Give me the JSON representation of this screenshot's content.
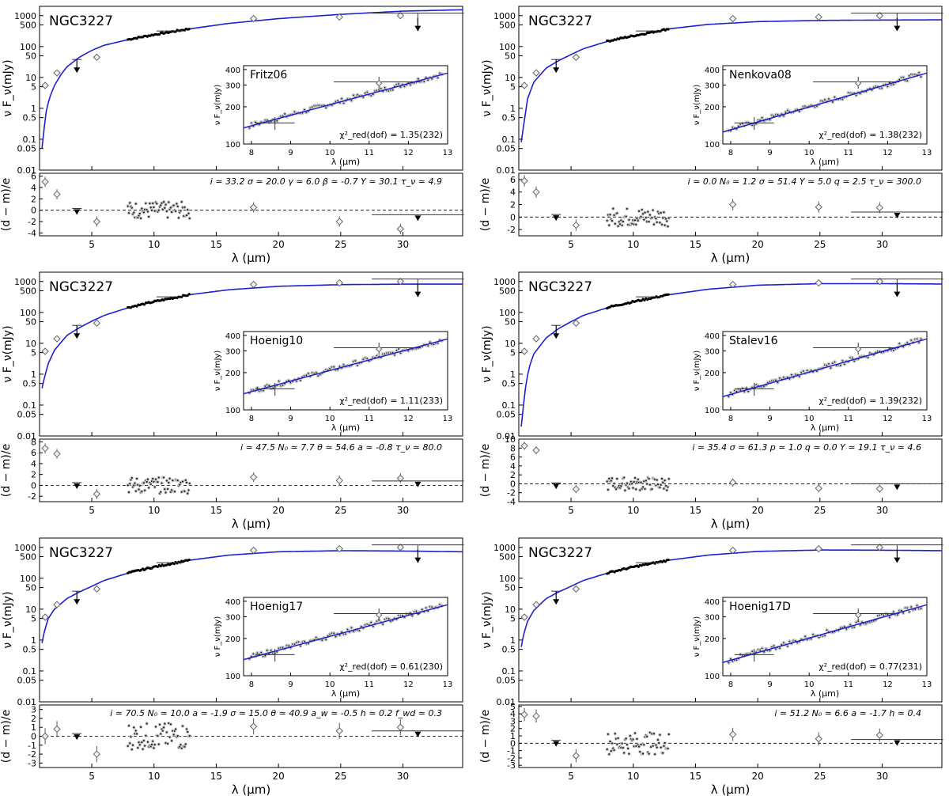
{
  "figure": {
    "xlabel_main": "λ (μm)",
    "ylabel_main": "ν F_ν(mJy)",
    "ylabel_resid": "(d − m)/e",
    "inset_xlabel": "λ (μm)",
    "inset_ylabel": "ν F_ν(mJy)",
    "colors": {
      "model": "#1f1fd0",
      "data": "#000000",
      "marker": "#888888",
      "ribbon": "#c8c8c8"
    }
  },
  "chart_data": [
    {
      "type": "line",
      "object": "NGC3227",
      "model": "Fritz06",
      "chi2_label": "χ²_red(dof) = 1.35(232)",
      "params": "i ≃ 33.2   σ ≃ 20.0   γ ≃ 6.0   β ≃ -0.7   Y ≃ 30.1   τ_ν ≃ 4.9",
      "main": {
        "xlim": [
          0.8,
          34.8
        ],
        "ylim": [
          0.01,
          2000
        ],
        "yscale": "log",
        "yticks": [
          "0.01",
          "0.05",
          "0.1",
          "0.5",
          "1",
          "5",
          "10",
          "50",
          "100",
          "500",
          "1000"
        ]
      },
      "model_curve": {
        "x": [
          1.0,
          1.3,
          1.6,
          2,
          2.5,
          3,
          4,
          5,
          6,
          8,
          10,
          13,
          16,
          20,
          25,
          30,
          34.8
        ],
        "y": [
          0.05,
          0.7,
          2.2,
          5.5,
          12,
          22,
          45,
          75,
          110,
          170,
          240,
          380,
          560,
          800,
          1100,
          1400,
          1550
        ]
      },
      "photometry": [
        {
          "x": 1.25,
          "y": 5.5,
          "xerr": 0,
          "yerr": [
            0,
            0
          ]
        },
        {
          "x": 2.2,
          "y": 14,
          "xerr": 0,
          "yerr": [
            0,
            0
          ]
        },
        {
          "x": 5.4,
          "y": 45,
          "xerr": 0,
          "yerr": [
            10,
            12
          ]
        },
        {
          "x": 18,
          "y": 800,
          "xerr": 0,
          "yerr": [
            0,
            0
          ]
        },
        {
          "x": 24.9,
          "y": 900,
          "xerr": 0,
          "yerr": [
            0,
            0
          ]
        },
        {
          "x": 29.8,
          "y": 1000,
          "xerr": 0,
          "yerr": [
            0,
            0
          ]
        }
      ],
      "upper_limits": [
        {
          "x": 3.8,
          "y": 38,
          "xerr": 0
        },
        {
          "x": 31.2,
          "y": 1200,
          "xerr": 3.7
        }
      ],
      "resid": {
        "ylim": [
          -4.5,
          6.5
        ],
        "yticks": [
          -4,
          -2,
          0,
          2,
          4,
          6
        ],
        "points": [
          {
            "x": 1.25,
            "y": 5.0
          },
          {
            "x": 2.2,
            "y": 2.8
          },
          {
            "x": 5.4,
            "y": -2.0
          },
          {
            "x": 18,
            "y": 0.5
          },
          {
            "x": 24.9,
            "y": -2.0
          },
          {
            "x": 29.8,
            "y": -3.3
          }
        ],
        "limits": [
          {
            "x": 3.8,
            "y": 0.3
          },
          {
            "x": 31.2,
            "y": -0.8
          }
        ]
      },
      "inset": {
        "xlim": [
          7.8,
          13
        ],
        "ylim": [
          100,
          430
        ],
        "yscale": "log",
        "model_start": 135,
        "model_end": 375
      }
    },
    {
      "type": "line",
      "object": "NGC3227",
      "model": "Nenkova08",
      "chi2_label": "χ²_red(dof) = 1.38(232)",
      "params": "i ≃ 0.0   N₀ ≃ 1.2   σ ≃ 51.4   Y ≃ 5.0   q ≃ 2.5   τ_ν ≃ 300.0",
      "main": {
        "xlim": [
          0.8,
          34.8
        ],
        "ylim": [
          0.01,
          2000
        ],
        "yscale": "log",
        "yticks": [
          "0.01",
          "0.05",
          "0.1",
          "0.5",
          "1",
          "5",
          "10",
          "50",
          "100",
          "500",
          "1000"
        ]
      },
      "model_curve": {
        "x": [
          1.0,
          1.2,
          1.5,
          2,
          3,
          4,
          5,
          6,
          8,
          10,
          13,
          16,
          20,
          25,
          30,
          34.8
        ],
        "y": [
          0.08,
          0.3,
          2,
          7,
          20,
          35,
          55,
          85,
          150,
          220,
          380,
          520,
          640,
          700,
          720,
          730
        ]
      },
      "photometry": [
        {
          "x": 1.25,
          "y": 5.5,
          "xerr": 0,
          "yerr": [
            0,
            0
          ]
        },
        {
          "x": 2.2,
          "y": 14,
          "xerr": 0,
          "yerr": [
            0,
            0
          ]
        },
        {
          "x": 5.4,
          "y": 45,
          "xerr": 0,
          "yerr": [
            10,
            12
          ]
        },
        {
          "x": 18,
          "y": 800,
          "xerr": 0,
          "yerr": [
            0,
            0
          ]
        },
        {
          "x": 24.9,
          "y": 900,
          "xerr": 0,
          "yerr": [
            0,
            0
          ]
        },
        {
          "x": 29.8,
          "y": 1000,
          "xerr": 0,
          "yerr": [
            0,
            0
          ]
        }
      ],
      "upper_limits": [
        {
          "x": 3.8,
          "y": 38,
          "xerr": 0
        },
        {
          "x": 31.2,
          "y": 1200,
          "xerr": 3.7
        }
      ],
      "resid": {
        "ylim": [
          -3,
          7
        ],
        "yticks": [
          -2,
          0,
          2,
          4,
          6
        ],
        "points": [
          {
            "x": 1.25,
            "y": 5.8
          },
          {
            "x": 2.2,
            "y": 4.0
          },
          {
            "x": 5.4,
            "y": -1.3
          },
          {
            "x": 18,
            "y": 2.0
          },
          {
            "x": 24.9,
            "y": 1.6
          },
          {
            "x": 29.8,
            "y": 1.5
          }
        ],
        "limits": [
          {
            "x": 3.8,
            "y": 0.4
          },
          {
            "x": 31.2,
            "y": 0.8
          }
        ]
      },
      "inset": {
        "xlim": [
          7.8,
          13
        ],
        "ylim": [
          100,
          430
        ],
        "yscale": "log",
        "model_start": 125,
        "model_end": 375
      }
    },
    {
      "type": "line",
      "object": "NGC3227",
      "model": "Hoenig10",
      "chi2_label": "χ²_red(dof) = 1.11(233)",
      "params": "i ≃ 47.5   N₀ ≃ 7.7   θ ≃ 54.6   a ≃ -0.8   τ_ν ≃ 80.0",
      "main": {
        "xlim": [
          0.8,
          34.8
        ],
        "ylim": [
          0.01,
          2000
        ],
        "yscale": "log",
        "yticks": [
          "0.01",
          "0.05",
          "0.1",
          "0.5",
          "1",
          "5",
          "10",
          "50",
          "100",
          "500",
          "1000"
        ]
      },
      "model_curve": {
        "x": [
          1.0,
          1.2,
          1.5,
          2,
          3,
          4,
          5,
          6,
          8,
          10,
          13,
          16,
          20,
          25,
          30,
          34.8
        ],
        "y": [
          0.35,
          0.8,
          2.2,
          6,
          18,
          32,
          52,
          80,
          145,
          220,
          380,
          540,
          700,
          790,
          820,
          820
        ]
      },
      "photometry": [
        {
          "x": 1.25,
          "y": 5.5,
          "xerr": 0,
          "yerr": [
            0,
            0
          ]
        },
        {
          "x": 2.2,
          "y": 14,
          "xerr": 0,
          "yerr": [
            0,
            0
          ]
        },
        {
          "x": 5.4,
          "y": 45,
          "xerr": 0,
          "yerr": [
            10,
            12
          ]
        },
        {
          "x": 18,
          "y": 800,
          "xerr": 0,
          "yerr": [
            0,
            0
          ]
        },
        {
          "x": 24.9,
          "y": 900,
          "xerr": 0,
          "yerr": [
            0,
            0
          ]
        },
        {
          "x": 29.8,
          "y": 1000,
          "xerr": 0,
          "yerr": [
            0,
            0
          ]
        }
      ],
      "upper_limits": [
        {
          "x": 3.8,
          "y": 38,
          "xerr": 0
        },
        {
          "x": 31.2,
          "y": 1200,
          "xerr": 3.7
        }
      ],
      "resid": {
        "ylim": [
          -3,
          8.5
        ],
        "yticks": [
          -2,
          0,
          2,
          4,
          6,
          8
        ],
        "points": [
          {
            "x": 1.25,
            "y": 6.8
          },
          {
            "x": 2.2,
            "y": 5.8
          },
          {
            "x": 5.4,
            "y": -1.6
          },
          {
            "x": 18,
            "y": 1.5
          },
          {
            "x": 24.9,
            "y": 0.9
          },
          {
            "x": 29.8,
            "y": 1.3
          }
        ],
        "limits": [
          {
            "x": 3.8,
            "y": 0.5
          },
          {
            "x": 31.2,
            "y": 0.8
          }
        ]
      },
      "inset": {
        "xlim": [
          7.8,
          13
        ],
        "ylim": [
          100,
          430
        ],
        "yscale": "log",
        "model_start": 135,
        "model_end": 375
      }
    },
    {
      "type": "line",
      "object": "NGC3227",
      "model": "Stalev16",
      "chi2_label": "χ²_red(dof) = 1.39(232)",
      "params": "i ≃ 35.4   σ ≃ 61.3   p ≃ 1.0   q ≃ 0.0   Y ≃ 19.1   τ_ν ≃ 4.6",
      "main": {
        "xlim": [
          0.8,
          34.8
        ],
        "ylim": [
          0.01,
          2000
        ],
        "yscale": "log",
        "yticks": [
          "0.01",
          "0.05",
          "0.1",
          "0.5",
          "1",
          "5",
          "10",
          "50",
          "100",
          "500",
          "1000"
        ]
      },
      "model_curve": {
        "x": [
          1.0,
          1.3,
          1.6,
          2,
          3,
          4,
          5,
          6,
          8,
          10,
          13,
          16,
          20,
          25,
          30,
          34.8
        ],
        "y": [
          0.02,
          0.3,
          1.5,
          4.5,
          15,
          30,
          50,
          80,
          145,
          220,
          380,
          560,
          760,
          850,
          850,
          830
        ]
      },
      "photometry": [
        {
          "x": 1.25,
          "y": 5.5,
          "xerr": 0,
          "yerr": [
            0,
            0
          ]
        },
        {
          "x": 2.2,
          "y": 14,
          "xerr": 0,
          "yerr": [
            0,
            0
          ]
        },
        {
          "x": 5.4,
          "y": 45,
          "xerr": 0,
          "yerr": [
            10,
            12
          ]
        },
        {
          "x": 18,
          "y": 800,
          "xerr": 0,
          "yerr": [
            0,
            0
          ]
        },
        {
          "x": 24.9,
          "y": 900,
          "xerr": 0,
          "yerr": [
            0,
            0
          ]
        },
        {
          "x": 29.8,
          "y": 1000,
          "xerr": 0,
          "yerr": [
            0,
            0
          ]
        }
      ],
      "upper_limits": [
        {
          "x": 3.8,
          "y": 38,
          "xerr": 0
        },
        {
          "x": 31.2,
          "y": 1200,
          "xerr": 3.7
        }
      ],
      "resid": {
        "ylim": [
          -4,
          10
        ],
        "yticks": [
          -4,
          -2,
          0,
          2,
          4,
          6,
          8,
          10
        ],
        "points": [
          {
            "x": 1.25,
            "y": 8.5
          },
          {
            "x": 2.2,
            "y": 7.5
          },
          {
            "x": 5.4,
            "y": -1.2
          },
          {
            "x": 18,
            "y": 0.3
          },
          {
            "x": 24.9,
            "y": -1.0
          },
          {
            "x": 29.8,
            "y": -1.1
          }
        ],
        "limits": [
          {
            "x": 3.8,
            "y": 0.2
          },
          {
            "x": 31.2,
            "y": 0.0
          }
        ]
      },
      "inset": {
        "xlim": [
          7.8,
          13
        ],
        "ylim": [
          100,
          430
        ],
        "yscale": "log",
        "model_start": 128,
        "model_end": 375
      }
    },
    {
      "type": "line",
      "object": "NGC3227",
      "model": "Hoenig17",
      "chi2_label": "χ²_red(dof) = 0.61(230)",
      "params": "i ≃ 70.5   N₀ ≃ 10.0 a ≃ -1.9   σ ≃ 15.0   θ ≃ 40.9   a_w ≃ -0.5  h ≃ 0.2    f_wd ≃ 0.3",
      "main": {
        "xlim": [
          0.8,
          34.8
        ],
        "ylim": [
          0.01,
          2000
        ],
        "yscale": "log",
        "yticks": [
          "0.01",
          "0.05",
          "0.1",
          "0.5",
          "1",
          "5",
          "10",
          "50",
          "100",
          "500",
          "1000"
        ]
      },
      "model_curve": {
        "x": [
          1.0,
          1.2,
          1.5,
          2,
          3,
          4,
          5,
          6,
          8,
          10,
          13,
          16,
          20,
          25,
          30,
          34.8
        ],
        "y": [
          0.8,
          2,
          5,
          10,
          22,
          36,
          55,
          85,
          150,
          230,
          390,
          560,
          720,
          780,
          760,
          720
        ]
      },
      "photometry": [
        {
          "x": 1.25,
          "y": 5.5,
          "xerr": 0,
          "yerr": [
            0,
            0
          ]
        },
        {
          "x": 2.2,
          "y": 14,
          "xerr": 0,
          "yerr": [
            0,
            0
          ]
        },
        {
          "x": 5.4,
          "y": 45,
          "xerr": 0,
          "yerr": [
            10,
            12
          ]
        },
        {
          "x": 18,
          "y": 800,
          "xerr": 0,
          "yerr": [
            0,
            0
          ]
        },
        {
          "x": 24.9,
          "y": 900,
          "xerr": 0,
          "yerr": [
            0,
            0
          ]
        },
        {
          "x": 29.8,
          "y": 1000,
          "xerr": 0,
          "yerr": [
            0,
            0
          ]
        }
      ],
      "upper_limits": [
        {
          "x": 3.8,
          "y": 38,
          "xerr": 0
        },
        {
          "x": 31.2,
          "y": 1200,
          "xerr": 3.7
        }
      ],
      "resid": {
        "ylim": [
          -3.5,
          3.5
        ],
        "yticks": [
          -3,
          -2,
          -1,
          0,
          1,
          2,
          3
        ],
        "points": [
          {
            "x": 1.25,
            "y": 0.0
          },
          {
            "x": 2.2,
            "y": 0.8
          },
          {
            "x": 5.4,
            "y": -2.0
          },
          {
            "x": 18,
            "y": 1.1
          },
          {
            "x": 24.9,
            "y": 0.6
          },
          {
            "x": 29.8,
            "y": 1.0
          }
        ],
        "limits": [
          {
            "x": 3.8,
            "y": 0.3
          },
          {
            "x": 31.2,
            "y": 0.6
          }
        ]
      },
      "inset": {
        "xlim": [
          7.8,
          13
        ],
        "ylim": [
          100,
          430
        ],
        "yscale": "log",
        "model_start": 135,
        "model_end": 375
      }
    },
    {
      "type": "line",
      "object": "NGC3227",
      "model": "Hoenig17D",
      "chi2_label": "χ²_red(dof) = 0.77(231)",
      "params": "i ≃ 51.2   N₀ ≃ 6.6   a ≃ -1.7   h ≃ 0.4",
      "main": {
        "xlim": [
          0.8,
          34.8
        ],
        "ylim": [
          0.01,
          2000
        ],
        "yscale": "log",
        "yticks": [
          "0.01",
          "0.05",
          "0.1",
          "0.5",
          "1",
          "5",
          "10",
          "50",
          "100",
          "500",
          "1000"
        ]
      },
      "model_curve": {
        "x": [
          1.0,
          1.2,
          1.5,
          2,
          3,
          4,
          5,
          6,
          8,
          10,
          13,
          16,
          20,
          25,
          30,
          34.8
        ],
        "y": [
          0.6,
          1.6,
          4,
          9,
          22,
          36,
          55,
          85,
          150,
          230,
          390,
          560,
          740,
          820,
          810,
          780
        ]
      },
      "photometry": [
        {
          "x": 1.25,
          "y": 5.5,
          "xerr": 0,
          "yerr": [
            0,
            0
          ]
        },
        {
          "x": 2.2,
          "y": 14,
          "xerr": 0,
          "yerr": [
            0,
            0
          ]
        },
        {
          "x": 5.4,
          "y": 45,
          "xerr": 0,
          "yerr": [
            10,
            12
          ]
        },
        {
          "x": 18,
          "y": 800,
          "xerr": 0,
          "yerr": [
            0,
            0
          ]
        },
        {
          "x": 24.9,
          "y": 900,
          "xerr": 0,
          "yerr": [
            0,
            0
          ]
        },
        {
          "x": 29.8,
          "y": 1000,
          "xerr": 0,
          "yerr": [
            0,
            0
          ]
        }
      ],
      "upper_limits": [
        {
          "x": 3.8,
          "y": 38,
          "xerr": 0
        },
        {
          "x": 31.2,
          "y": 1200,
          "xerr": 3.7
        }
      ],
      "resid": {
        "ylim": [
          -3.3,
          5.2
        ],
        "yticks": [
          -3,
          -2,
          -1,
          0,
          1,
          2,
          3,
          4,
          5
        ],
        "points": [
          {
            "x": 1.25,
            "y": 3.9
          },
          {
            "x": 2.2,
            "y": 3.7
          },
          {
            "x": 5.4,
            "y": -1.7
          },
          {
            "x": 18,
            "y": 1.2
          },
          {
            "x": 24.9,
            "y": 0.6
          },
          {
            "x": 29.8,
            "y": 1.1
          }
        ],
        "limits": [
          {
            "x": 3.8,
            "y": 0.4
          },
          {
            "x": 31.2,
            "y": 0.5
          }
        ]
      },
      "inset": {
        "xlim": [
          7.8,
          13
        ],
        "ylim": [
          100,
          430
        ],
        "yscale": "log",
        "model_start": 128,
        "model_end": 375
      }
    }
  ]
}
